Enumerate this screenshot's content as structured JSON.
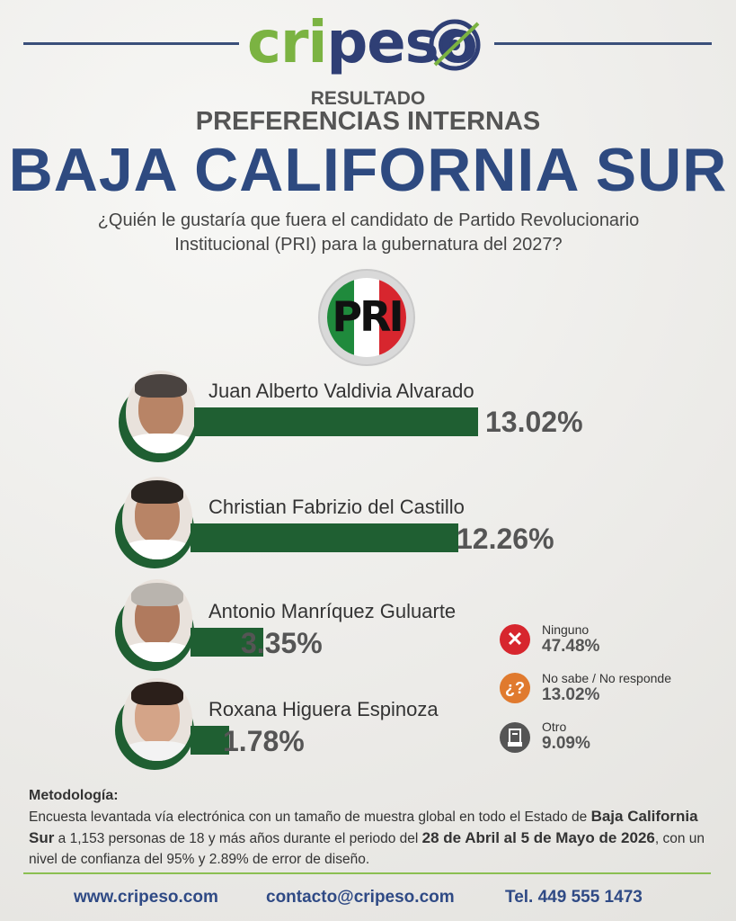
{
  "brand": {
    "logo_a": "cri",
    "logo_b": "pes",
    "logo_c": "o"
  },
  "header": {
    "result": "RESULTADO",
    "subtitle": "PREFERENCIAS INTERNAS",
    "state": "BAJA CALIFORNIA SUR",
    "question_line1": "¿Quién le gustaría que fuera el candidato de Partido Revolucionario",
    "question_line2": "Institucional (PRI) para la gubernatura del 2027?"
  },
  "party": {
    "logo_text": "PRI"
  },
  "colors": {
    "bar": "#1f5f32",
    "title": "#2e4a80",
    "accent": "#7bb342",
    "none": "#d7262e",
    "unsure": "#e07a2e",
    "other": "#555555"
  },
  "chart_data": {
    "type": "bar",
    "categories": [
      "Juan Alberto Valdivia Alvarado",
      "Christian Fabrizio del Castillo",
      "Antonio Manríquez Guluarte",
      "Roxana Higuera Espinoza"
    ],
    "values": [
      13.02,
      12.26,
      3.35,
      1.78
    ],
    "value_labels": [
      "13.02%",
      "12.26%",
      "3.35%",
      "1.78%"
    ],
    "unit": "%",
    "others": [
      {
        "label": "Ninguno",
        "value": 47.48,
        "display": "47.48%",
        "icon": "x-icon"
      },
      {
        "label": "No sabe / No responde",
        "value": 13.02,
        "display": "13.02%",
        "icon": "question-icon"
      },
      {
        "label": "Otro",
        "value": 9.09,
        "display": "9.09%",
        "icon": "ballot-icon"
      }
    ]
  },
  "methodology": {
    "title": "Metodología:",
    "p1": "Encuesta levantada vía electrónica con un tamaño de muestra global en todo el Estado de ",
    "b1": "Baja California Sur",
    "p2": " a 1,153 personas de 18 y más años durante el periodo del ",
    "b2": "28 de Abril al 5 de Mayo de 2026",
    "p3": ", con un nivel de confianza del 95% y 2.89% de error de diseño."
  },
  "footer": {
    "web": "www.cripeso.com",
    "email": "contacto@cripeso.com",
    "phone": "Tel. 449 555 1473"
  }
}
